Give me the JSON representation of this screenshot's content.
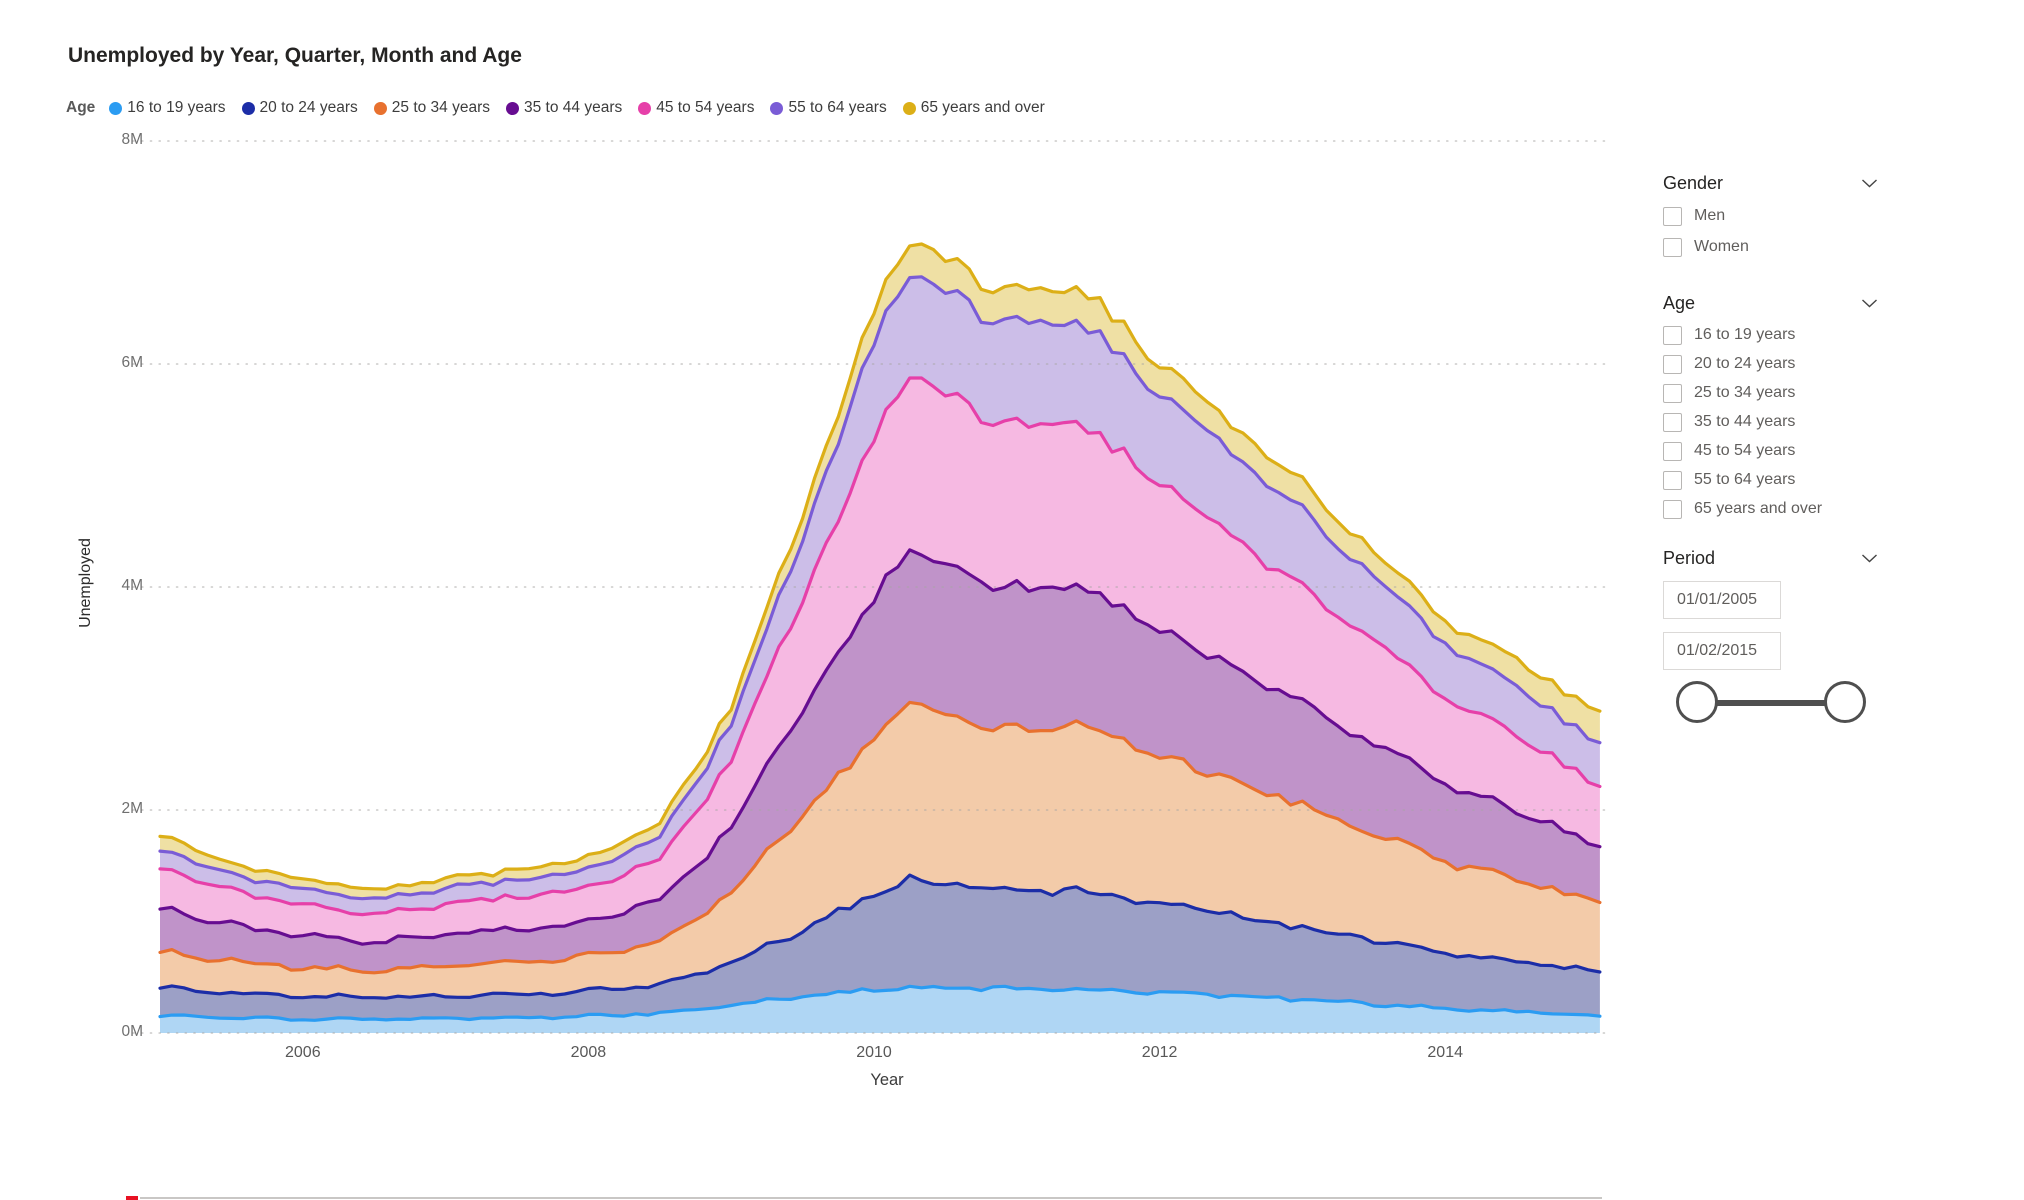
{
  "report": {
    "title": "Unemployed by Year, Quarter, Month and Age"
  },
  "legend": {
    "label": "Age"
  },
  "chart_data": {
    "type": "area",
    "stacked": true,
    "title": "Unemployed by Year, Quarter, Month and Age",
    "xlabel": "Year",
    "ylabel": "Unemployed",
    "value_unit": "millions of persons",
    "points": "monthly",
    "x_start": 2005.0,
    "x_end": 2015.083,
    "ylim_millions": [
      0,
      8
    ],
    "grid": "dotted horizontal gridlines",
    "legend_position": "top",
    "y_ticks": [
      {
        "label": "0M",
        "value": 0
      },
      {
        "label": "2M",
        "value": 2
      },
      {
        "label": "4M",
        "value": 4
      },
      {
        "label": "6M",
        "value": 6
      },
      {
        "label": "8M",
        "value": 8
      }
    ],
    "x_ticks": [
      {
        "label": "2006",
        "year": 2006
      },
      {
        "label": "2008",
        "year": 2008
      },
      {
        "label": "2010",
        "year": 2010
      },
      {
        "label": "2012",
        "year": 2012
      },
      {
        "label": "2014",
        "year": 2014
      }
    ],
    "keyframe_years": [
      2005.0,
      2005.75,
      2006.5,
      2007.0,
      2008.0,
      2008.5,
      2009.0,
      2009.5,
      2010.0,
      2010.25,
      2010.75,
      2011.5,
      2012.0,
      2013.0,
      2014.0,
      2015.083
    ],
    "series": [
      {
        "name": "16 to 19 years",
        "stroke": "#2B9CF2",
        "fill": "#AFD6F4",
        "values_millions": [
          0.15,
          0.13,
          0.12,
          0.13,
          0.15,
          0.18,
          0.25,
          0.33,
          0.39,
          0.41,
          0.4,
          0.39,
          0.36,
          0.3,
          0.22,
          0.15
        ]
      },
      {
        "name": "20 to 24 years",
        "stroke": "#1C2DA7",
        "fill": "#9CA0C6",
        "values_millions": [
          0.25,
          0.21,
          0.19,
          0.2,
          0.22,
          0.26,
          0.38,
          0.6,
          0.85,
          0.96,
          0.9,
          0.88,
          0.8,
          0.65,
          0.5,
          0.4
        ]
      },
      {
        "name": "25 to 34 years",
        "stroke": "#E8712F",
        "fill": "#F3CBA9",
        "values_millions": [
          0.32,
          0.27,
          0.24,
          0.27,
          0.31,
          0.38,
          0.62,
          1.05,
          1.42,
          1.57,
          1.45,
          1.48,
          1.32,
          1.1,
          0.82,
          0.62
        ]
      },
      {
        "name": "35 to 44 years",
        "stroke": "#670D91",
        "fill": "#C093C9",
        "values_millions": [
          0.39,
          0.3,
          0.26,
          0.28,
          0.31,
          0.37,
          0.58,
          0.95,
          1.26,
          1.37,
          1.28,
          1.25,
          1.13,
          0.92,
          0.7,
          0.5
        ]
      },
      {
        "name": "45 to 54 years",
        "stroke": "#E640A9",
        "fill": "#F6B9E2",
        "values_millions": [
          0.36,
          0.28,
          0.25,
          0.27,
          0.31,
          0.37,
          0.6,
          1.0,
          1.42,
          1.58,
          1.47,
          1.45,
          1.3,
          1.05,
          0.78,
          0.54
        ]
      },
      {
        "name": "55 to 64 years",
        "stroke": "#7A5CD6",
        "fill": "#CCBEE8",
        "values_millions": [
          0.16,
          0.14,
          0.13,
          0.14,
          0.16,
          0.2,
          0.32,
          0.55,
          0.85,
          0.93,
          0.92,
          0.9,
          0.82,
          0.68,
          0.48,
          0.39
        ]
      },
      {
        "name": "65 years and over",
        "stroke": "#DCAF17",
        "fill": "#EFE0A4",
        "values_millions": [
          0.13,
          0.09,
          0.08,
          0.09,
          0.1,
          0.12,
          0.15,
          0.22,
          0.28,
          0.3,
          0.29,
          0.3,
          0.27,
          0.25,
          0.2,
          0.28
        ]
      }
    ]
  },
  "filters": {
    "gender": {
      "title": "Gender",
      "options": [
        {
          "label": "Men",
          "checked": false
        },
        {
          "label": "Women",
          "checked": false
        }
      ]
    },
    "age": {
      "title": "Age",
      "options": [
        {
          "label": "16 to 19 years",
          "checked": false
        },
        {
          "label": "20 to 24 years",
          "checked": false
        },
        {
          "label": "25 to 34 years",
          "checked": false
        },
        {
          "label": "35 to 44 years",
          "checked": false
        },
        {
          "label": "45 to 54 years",
          "checked": false
        },
        {
          "label": "55 to 64 years",
          "checked": false
        },
        {
          "label": "65 years and over",
          "checked": false
        }
      ]
    },
    "period": {
      "title": "Period",
      "start": "01/01/2005",
      "end": "01/02/2015"
    }
  }
}
